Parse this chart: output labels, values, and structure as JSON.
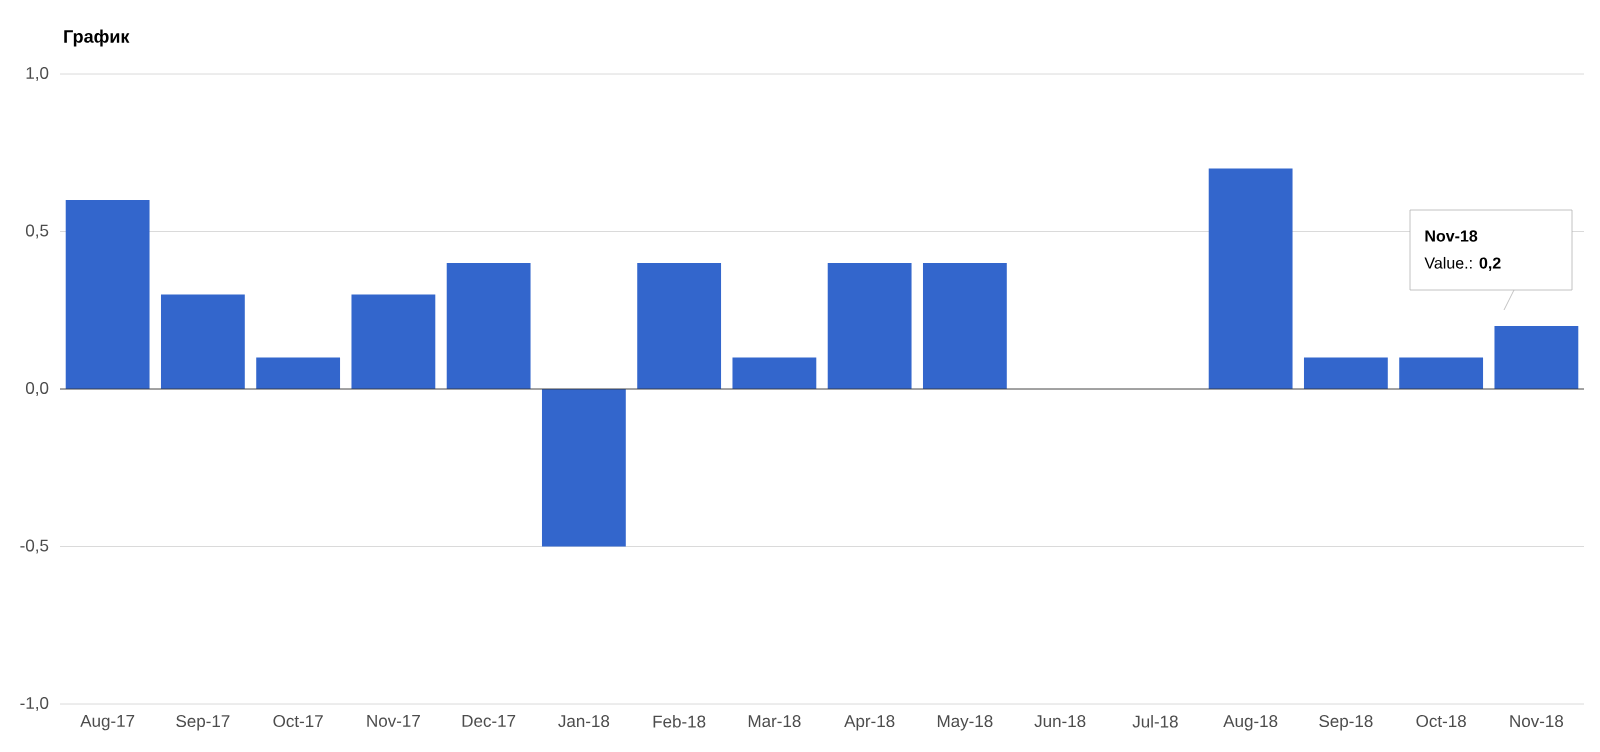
{
  "chart_data": {
    "type": "bar",
    "title": "График",
    "categories": [
      "Aug-17",
      "Sep-17",
      "Oct-17",
      "Nov-17",
      "Dec-17",
      "Jan-18",
      "Feb-18",
      "Mar-18",
      "Apr-18",
      "May-18",
      "Jun-18",
      "Jul-18",
      "Aug-18",
      "Sep-18",
      "Oct-18",
      "Nov-18"
    ],
    "values": [
      0.6,
      0.3,
      0.1,
      0.3,
      0.4,
      -0.5,
      0.4,
      0.1,
      0.4,
      0.4,
      0,
      0,
      0.7,
      0.1,
      0.1,
      0.2
    ],
    "color": "#3366cc",
    "ylim": [
      -1,
      1
    ],
    "yticks": [
      {
        "value": -1,
        "label": "-1,0"
      },
      {
        "value": -0.5,
        "label": "-0,5"
      },
      {
        "value": 0,
        "label": "0,0"
      },
      {
        "value": 0.5,
        "label": "0,5"
      },
      {
        "value": 1,
        "label": "1,0"
      }
    ],
    "grid": "y",
    "annotations": [
      "Nov-18",
      "Value.: **0,2**"
    ]
  }
}
